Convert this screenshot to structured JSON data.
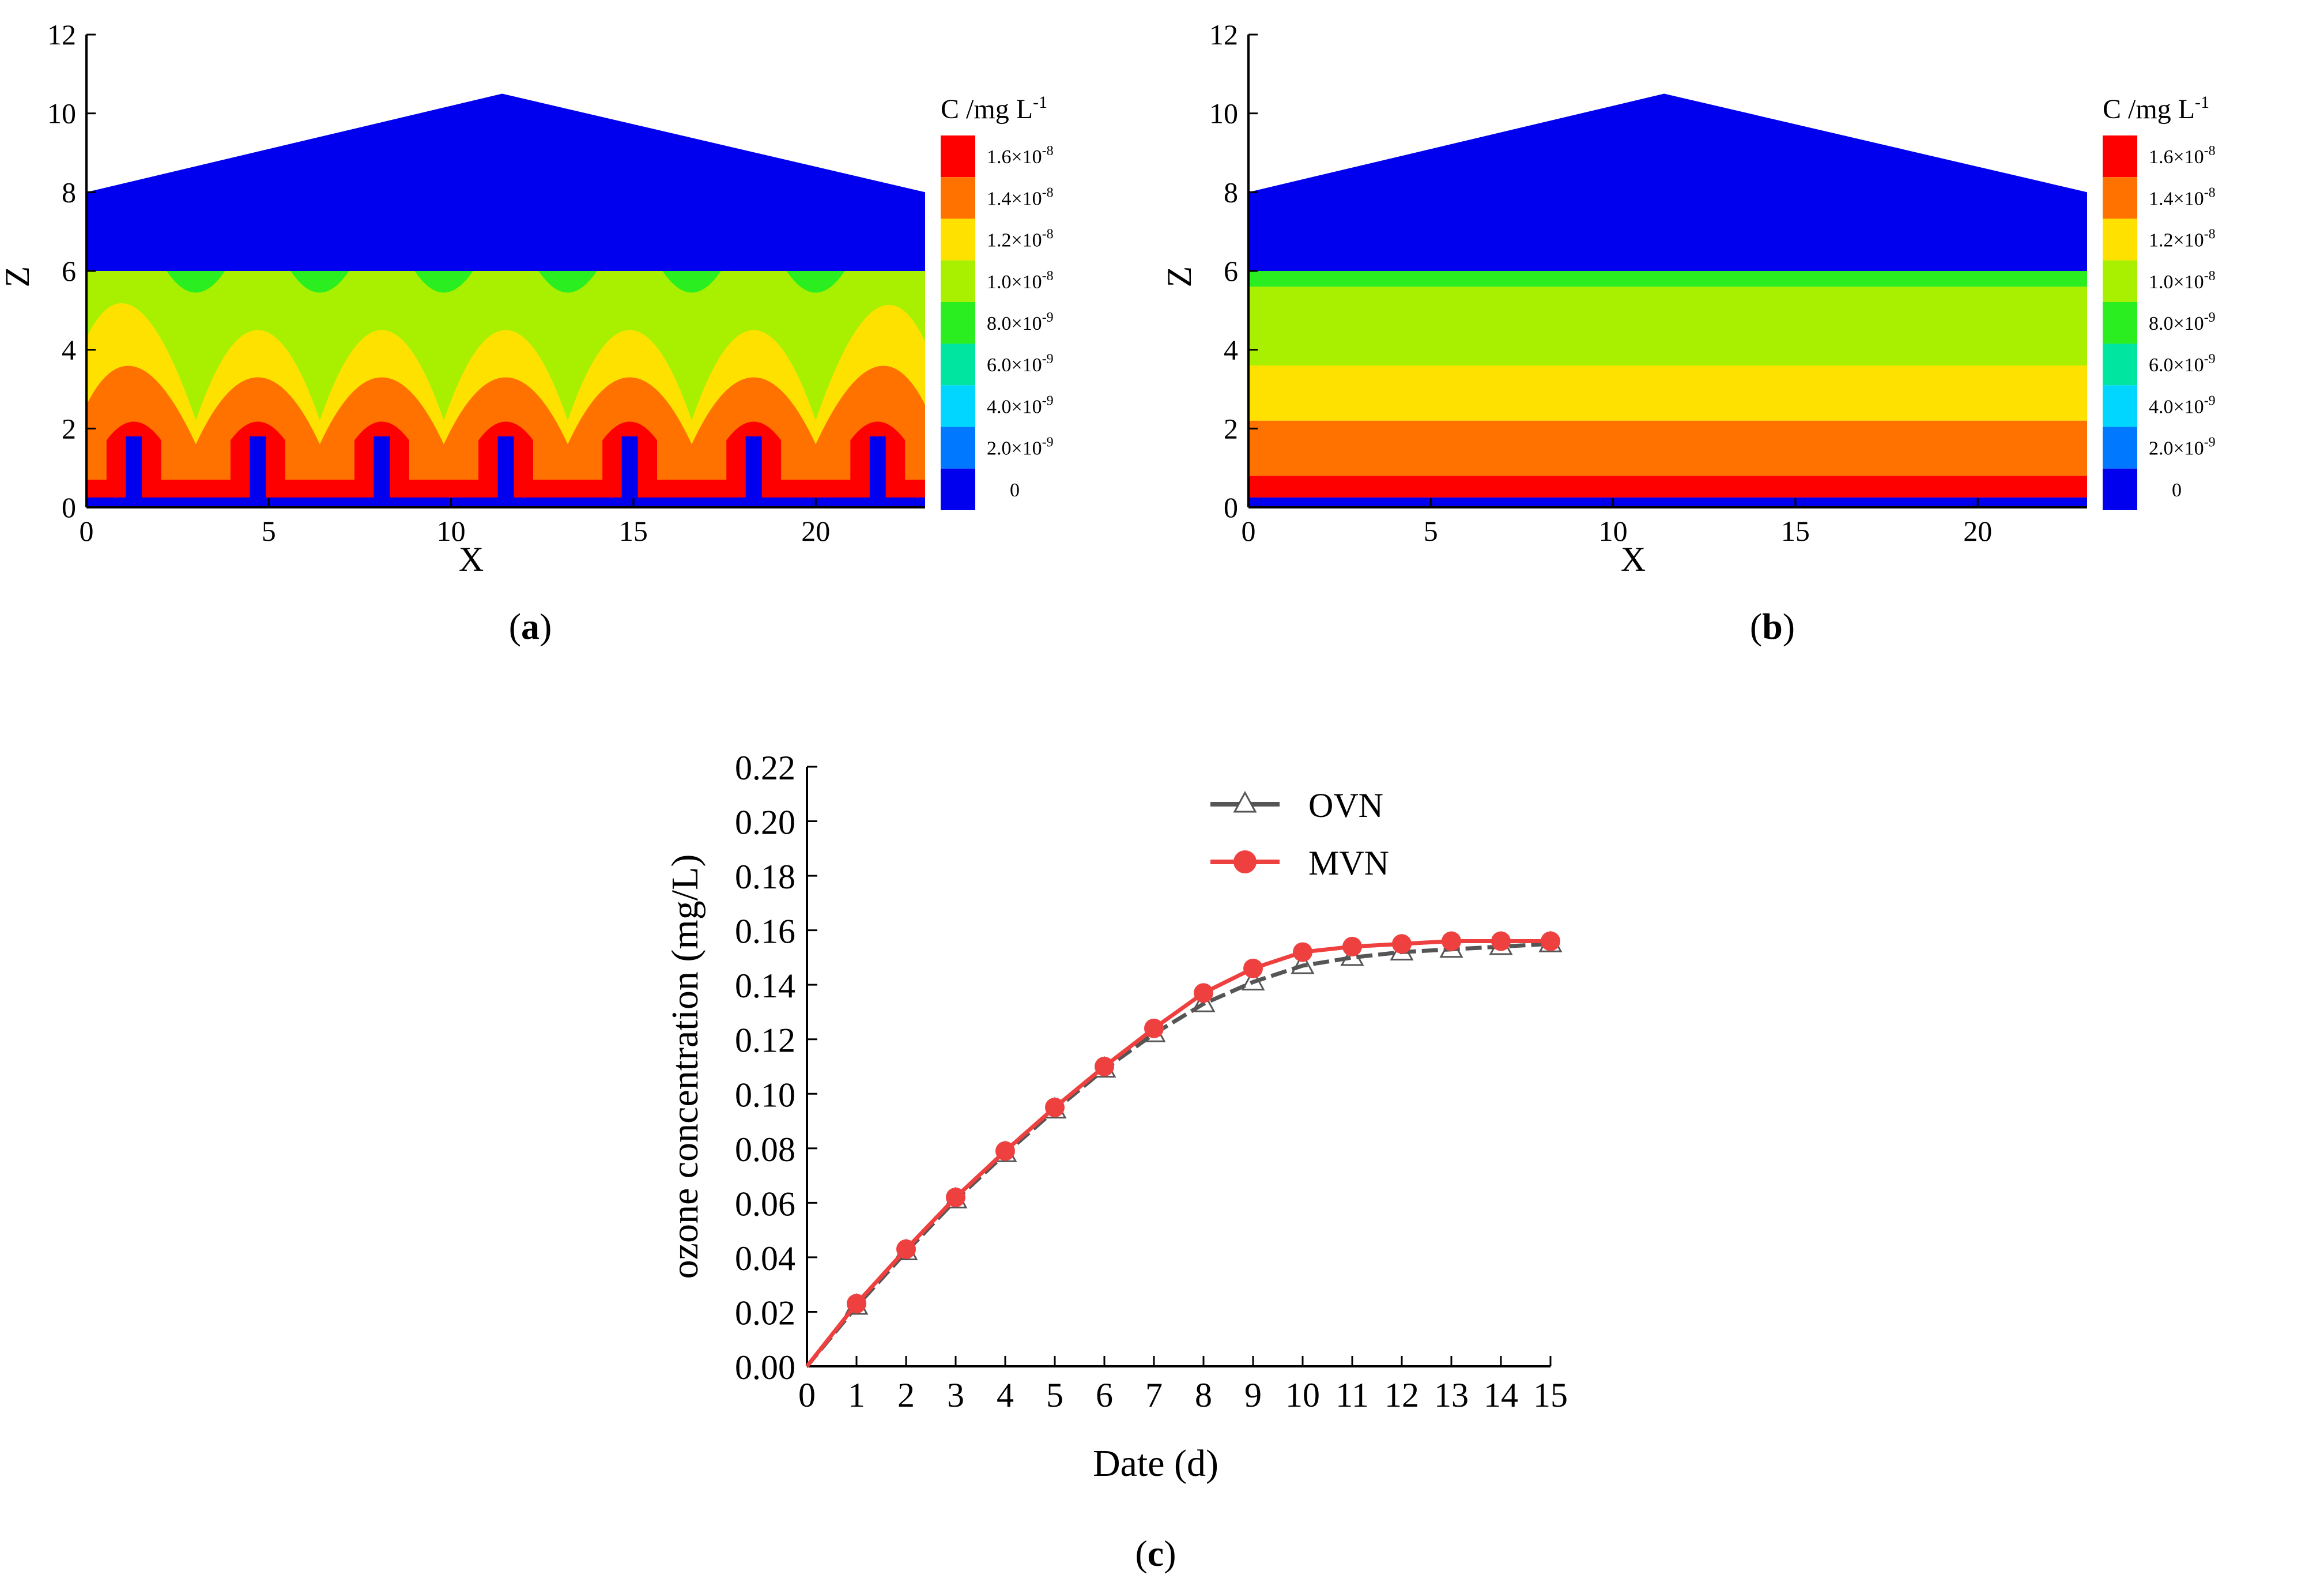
{
  "panels": {
    "a": {
      "letter": "a"
    },
    "b": {
      "letter": "b"
    },
    "c": {
      "letter": "c"
    }
  },
  "contour_axes": {
    "xlabel": "X",
    "zlabel": "Z",
    "xticks": [
      "0",
      "5",
      "10",
      "15",
      "20"
    ],
    "zticks": [
      "0",
      "2",
      "4",
      "6",
      "8",
      "10",
      "12"
    ]
  },
  "colorbar": {
    "title": "C /mg L",
    "title_sup": "-1",
    "levels": [
      {
        "mant": "1.6",
        "exp": "-8",
        "color": "#ff0000"
      },
      {
        "mant": "1.4",
        "exp": "-8",
        "color": "#ff7200"
      },
      {
        "mant": "1.2",
        "exp": "-8",
        "color": "#ffe100"
      },
      {
        "mant": "1.0",
        "exp": "-8",
        "color": "#a8f000"
      },
      {
        "mant": "8.0",
        "exp": "-9",
        "color": "#2bee20"
      },
      {
        "mant": "6.0",
        "exp": "-9",
        "color": "#00e6a0"
      },
      {
        "mant": "4.0",
        "exp": "-9",
        "color": "#00d6ff"
      },
      {
        "mant": "2.0",
        "exp": "-9",
        "color": "#0078ff"
      },
      {
        "mant": "0",
        "exp": "",
        "color": "#0000ee"
      }
    ]
  },
  "colors": {
    "blue": "#0000ee",
    "red": "#ff0000",
    "orange": "#ff7200",
    "yellow": "#ffe100",
    "lime": "#a8f000",
    "green": "#2bee20",
    "mvn": "#ef4040",
    "ovn": "#555555"
  },
  "chart_data": [
    {
      "type": "heatmap",
      "panel": "a",
      "xlabel": "X",
      "ylabel": "Z",
      "xlim": [
        0,
        23
      ],
      "ylim": [
        0,
        12
      ],
      "roof": [
        [
          0,
          8
        ],
        [
          11.4,
          10.5
        ],
        [
          23,
          8
        ]
      ],
      "inlet_x": [
        1.3,
        4.7,
        8.1,
        11.5,
        14.9,
        18.3,
        21.7
      ],
      "inlet_height": 1.8
    },
    {
      "type": "heatmap",
      "panel": "b",
      "xlabel": "X",
      "ylabel": "Z",
      "xlim": [
        0,
        23
      ],
      "ylim": [
        0,
        12
      ],
      "roof": [
        [
          0,
          8
        ],
        [
          11.4,
          10.5
        ],
        [
          23,
          8
        ]
      ],
      "bands": [
        {
          "z_from": 0.25,
          "z_to": 0.8,
          "level": "1.6e-8"
        },
        {
          "z_from": 0.8,
          "z_to": 2.2,
          "level": "1.4e-8"
        },
        {
          "z_from": 2.2,
          "z_to": 3.6,
          "level": "1.2e-8"
        },
        {
          "z_from": 3.6,
          "z_to": 5.6,
          "level": "1.0e-8"
        },
        {
          "z_from": 5.6,
          "z_to": 6.0,
          "level": "8.0e-9"
        }
      ]
    },
    {
      "type": "line",
      "panel": "c",
      "xlabel": "Date (d)",
      "ylabel": "ozone concentration (mg/L)",
      "xlim": [
        0,
        15
      ],
      "ylim": [
        0,
        0.22
      ],
      "xticks": [
        "0",
        "1",
        "2",
        "3",
        "4",
        "5",
        "6",
        "7",
        "8",
        "9",
        "10",
        "11",
        "12",
        "13",
        "14",
        "15"
      ],
      "yticks": [
        "0.00",
        "0.02",
        "0.04",
        "0.06",
        "0.08",
        "0.10",
        "0.12",
        "0.14",
        "0.16",
        "0.18",
        "0.20",
        "0.22"
      ],
      "x": [
        0,
        1,
        2,
        3,
        4,
        5,
        6,
        7,
        8,
        9,
        10,
        11,
        12,
        13,
        14,
        15
      ],
      "series": [
        {
          "name": "OVN",
          "marker": "triangle",
          "values": [
            0.0,
            0.022,
            0.042,
            0.061,
            0.078,
            0.094,
            0.109,
            0.122,
            0.133,
            0.141,
            0.147,
            0.15,
            0.152,
            0.153,
            0.154,
            0.155
          ]
        },
        {
          "name": "MVN",
          "marker": "circle",
          "values": [
            0.0,
            0.023,
            0.043,
            0.062,
            0.079,
            0.095,
            0.11,
            0.124,
            0.137,
            0.146,
            0.152,
            0.154,
            0.155,
            0.156,
            0.156,
            0.156
          ]
        }
      ],
      "legend_position": "top-center"
    }
  ]
}
